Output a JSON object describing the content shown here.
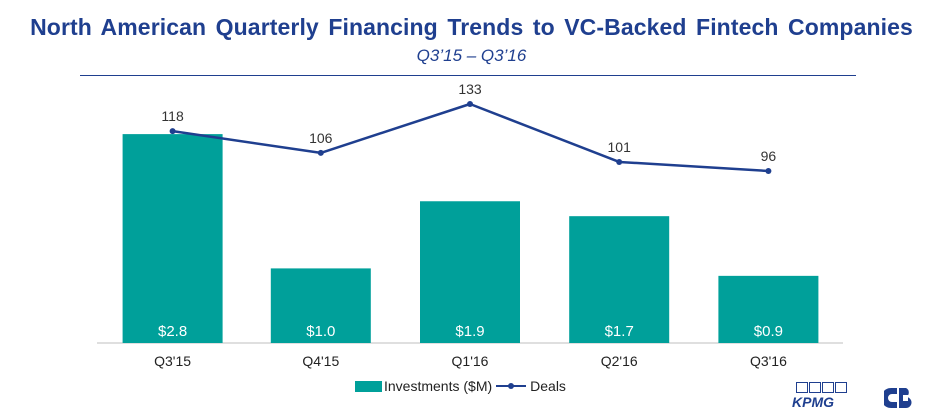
{
  "title": "North American Quarterly Financing Trends to VC-Backed Fintech Companies",
  "subtitle": "Q3’15 – Q3’16",
  "chart_data": {
    "type": "bar",
    "categories": [
      "Q3'15",
      "Q4'15",
      "Q1'16",
      "Q2'16",
      "Q3'16"
    ],
    "series": [
      {
        "name": "Investments ($M)",
        "kind": "bar",
        "values": [
          2.8,
          1.0,
          1.9,
          1.7,
          0.9
        ],
        "labels": [
          "$2.8",
          "$1.0",
          "$1.9",
          "$1.7",
          "$0.9"
        ],
        "color": "#00a09a"
      },
      {
        "name": "Deals",
        "kind": "line",
        "values": [
          118,
          106,
          133,
          101,
          96
        ],
        "color": "#1f3f8f"
      }
    ],
    "bar_axis_range": [
      0,
      3.15
    ],
    "line_axis_range": [
      0,
      133
    ],
    "legend": "bottom-center"
  },
  "logos": {
    "kpmg": "KPMG",
    "cb_insights": "cb-insights-logo"
  },
  "colors": {
    "bar": "#00a09a",
    "line": "#1f3f8f",
    "title": "#1f3f8f"
  }
}
